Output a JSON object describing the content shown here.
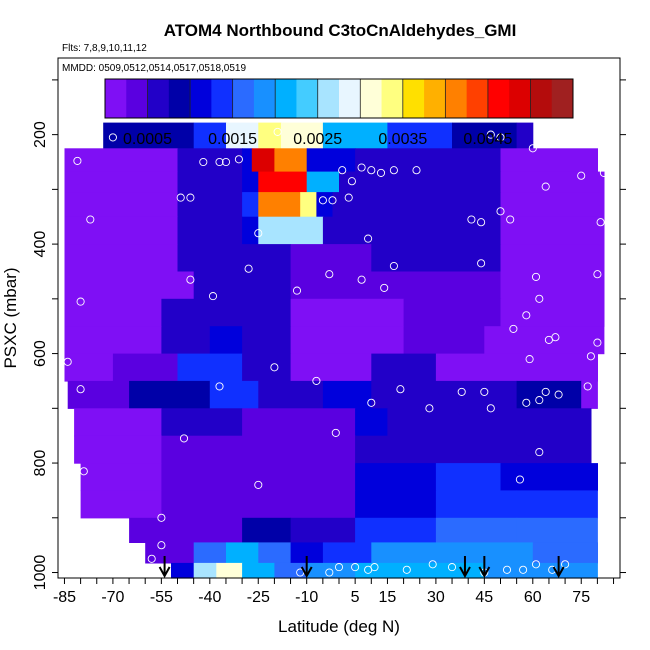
{
  "chart_data": {
    "type": "heatmap",
    "title": "ATOM4 Northbound C3toCnAldehydes_GMI",
    "subtitle_flights": "Flts: 7,8,9,10,11,12",
    "subtitle_dates": "MMDD: 0509,0512,0514,0517,0518,0519",
    "xlabel": "Latitude (deg N)",
    "ylabel": "PSXC (mbar)",
    "xlim": [
      -87,
      87
    ],
    "ylim": [
      1010,
      60
    ],
    "x_ticks": [
      -85,
      -70,
      -55,
      -40,
      -25,
      -10,
      5,
      15,
      30,
      45,
      60,
      75
    ],
    "x_tick_labels": [
      "-85",
      "-70",
      "-55",
      "-40",
      "-25",
      "-10",
      "5",
      "15",
      "30",
      "45",
      "60",
      "75"
    ],
    "y_ticks": [
      200,
      400,
      600,
      800,
      1000
    ],
    "y_tick_labels": [
      "200",
      "400",
      "600",
      "800",
      "1000"
    ],
    "colorbar": {
      "min": 0.0,
      "max": 0.0055,
      "tick_values": [
        0.0005,
        0.0015,
        0.0025,
        0.0035,
        0.0045
      ],
      "tick_labels": [
        "0.0005",
        "0.0015",
        "0.0025",
        "0.0035",
        "0.0045"
      ],
      "colors": [
        "#7f0ff5",
        "#5a00e0",
        "#2200c8",
        "#0000a8",
        "#0000dc",
        "#1030ff",
        "#2b6bff",
        "#1890ff",
        "#00b0ff",
        "#44ccff",
        "#a8e4ff",
        "#e8f6ff",
        "#ffffd8",
        "#ffff80",
        "#ffe000",
        "#ffb000",
        "#ff8000",
        "#ff4000",
        "#ff0000",
        "#dc0000",
        "#b40c0c",
        "#a02020"
      ]
    },
    "bands": [
      {
        "p": 200,
        "segments": [
          {
            "x0": -73,
            "x1": -45,
            "v": 0.0008
          },
          {
            "x0": -45,
            "x1": -35,
            "v": 0.0014
          },
          {
            "x0": -35,
            "x1": -25,
            "v": 0.0028
          },
          {
            "x0": -25,
            "x1": -18,
            "v": 0.0033
          },
          {
            "x0": -18,
            "x1": -5,
            "v": 0.003
          },
          {
            "x0": -5,
            "x1": 15,
            "v": 0.002
          },
          {
            "x0": 15,
            "x1": 35,
            "v": 0.0014
          },
          {
            "x0": 35,
            "x1": 55,
            "v": 0.0009
          },
          {
            "x0": 55,
            "x1": 60,
            "v": 0.0006
          }
        ]
      },
      {
        "p": 250,
        "segments": [
          {
            "x0": -85,
            "x1": -50,
            "v": 0.0002
          },
          {
            "x0": -50,
            "x1": -30,
            "v": 0.0006
          },
          {
            "x0": -30,
            "x1": -27,
            "v": 0.0012
          },
          {
            "x0": -27,
            "x1": -20,
            "v": 0.0048
          },
          {
            "x0": -20,
            "x1": -10,
            "v": 0.004
          },
          {
            "x0": -10,
            "x1": 5,
            "v": 0.001
          },
          {
            "x0": 5,
            "x1": 50,
            "v": 0.0006
          },
          {
            "x0": 50,
            "x1": 80,
            "v": 0.0002
          }
        ]
      },
      {
        "p": 285,
        "segments": [
          {
            "x0": -85,
            "x1": -50,
            "v": 0.0002
          },
          {
            "x0": -50,
            "x1": -30,
            "v": 0.0006
          },
          {
            "x0": -30,
            "x1": -25,
            "v": 0.0012
          },
          {
            "x0": -25,
            "x1": -10,
            "v": 0.0047
          },
          {
            "x0": -10,
            "x1": 0,
            "v": 0.0022
          },
          {
            "x0": 0,
            "x1": 50,
            "v": 0.0006
          },
          {
            "x0": 50,
            "x1": 82,
            "v": 0.0002
          }
        ]
      },
      {
        "p": 325,
        "segments": [
          {
            "x0": -85,
            "x1": -50,
            "v": 0.0002
          },
          {
            "x0": -50,
            "x1": -30,
            "v": 0.0006
          },
          {
            "x0": -30,
            "x1": -25,
            "v": 0.0014
          },
          {
            "x0": -25,
            "x1": -12,
            "v": 0.0041
          },
          {
            "x0": -12,
            "x1": -7,
            "v": 0.0034
          },
          {
            "x0": -7,
            "x1": -2,
            "v": 0.001
          },
          {
            "x0": -2,
            "x1": 50,
            "v": 0.0006
          },
          {
            "x0": 50,
            "x1": 82,
            "v": 0.0002
          }
        ]
      },
      {
        "p": 375,
        "segments": [
          {
            "x0": -85,
            "x1": -50,
            "v": 0.0002
          },
          {
            "x0": -50,
            "x1": -30,
            "v": 0.0006
          },
          {
            "x0": -30,
            "x1": -25,
            "v": 0.0012
          },
          {
            "x0": -25,
            "x1": -5,
            "v": 0.0027
          },
          {
            "x0": -5,
            "x1": 50,
            "v": 0.0005
          },
          {
            "x0": 50,
            "x1": 82,
            "v": 0.0002
          }
        ]
      },
      {
        "p": 425,
        "segments": [
          {
            "x0": -85,
            "x1": -50,
            "v": 0.0002
          },
          {
            "x0": -50,
            "x1": -15,
            "v": 0.0006
          },
          {
            "x0": -15,
            "x1": 10,
            "v": 0.0004
          },
          {
            "x0": 10,
            "x1": 50,
            "v": 0.0005
          },
          {
            "x0": 50,
            "x1": 82,
            "v": 0.0002
          }
        ]
      },
      {
        "p": 475,
        "segments": [
          {
            "x0": -85,
            "x1": -45,
            "v": 0.0002
          },
          {
            "x0": -45,
            "x1": -15,
            "v": 0.0007
          },
          {
            "x0": -15,
            "x1": 20,
            "v": 0.0003
          },
          {
            "x0": 20,
            "x1": 50,
            "v": 0.0004
          },
          {
            "x0": 50,
            "x1": 82,
            "v": 0.0002
          }
        ]
      },
      {
        "p": 525,
        "segments": [
          {
            "x0": -85,
            "x1": -55,
            "v": 0.0002
          },
          {
            "x0": -55,
            "x1": -15,
            "v": 0.0006
          },
          {
            "x0": -15,
            "x1": 20,
            "v": 0.0002
          },
          {
            "x0": 20,
            "x1": 50,
            "v": 0.0003
          },
          {
            "x0": 50,
            "x1": 82,
            "v": 0.0002
          }
        ]
      },
      {
        "p": 575,
        "segments": [
          {
            "x0": -85,
            "x1": -55,
            "v": 0.0002
          },
          {
            "x0": -55,
            "x1": -40,
            "v": 0.0005
          },
          {
            "x0": -40,
            "x1": -30,
            "v": 0.001
          },
          {
            "x0": -30,
            "x1": -15,
            "v": 0.0007
          },
          {
            "x0": -15,
            "x1": 20,
            "v": 0.0002
          },
          {
            "x0": 20,
            "x1": 45,
            "v": 0.0004
          },
          {
            "x0": 45,
            "x1": 82,
            "v": 0.0002
          }
        ]
      },
      {
        "p": 625,
        "segments": [
          {
            "x0": -85,
            "x1": -70,
            "v": 0.0002
          },
          {
            "x0": -70,
            "x1": -50,
            "v": 0.0003
          },
          {
            "x0": -50,
            "x1": -30,
            "v": 0.0014
          },
          {
            "x0": -30,
            "x1": -15,
            "v": 0.0006
          },
          {
            "x0": -15,
            "x1": 10,
            "v": 0.0002
          },
          {
            "x0": 10,
            "x1": 30,
            "v": 0.0005
          },
          {
            "x0": 30,
            "x1": 80,
            "v": 0.0002
          }
        ]
      },
      {
        "p": 675,
        "segments": [
          {
            "x0": -84,
            "x1": -65,
            "v": 0.0003
          },
          {
            "x0": -65,
            "x1": -40,
            "v": 0.0008
          },
          {
            "x0": -40,
            "x1": -25,
            "v": 0.0013
          },
          {
            "x0": -25,
            "x1": -5,
            "v": 0.0006
          },
          {
            "x0": -5,
            "x1": 10,
            "v": 0.0012
          },
          {
            "x0": 10,
            "x1": 20,
            "v": 0.0006
          },
          {
            "x0": 20,
            "x1": 55,
            "v": 0.0005
          },
          {
            "x0": 55,
            "x1": 75,
            "v": 0.0008
          },
          {
            "x0": 75,
            "x1": 80,
            "v": 0.0002
          }
        ]
      },
      {
        "p": 725,
        "segments": [
          {
            "x0": -82,
            "x1": -55,
            "v": 0.0002
          },
          {
            "x0": -55,
            "x1": -30,
            "v": 0.0006
          },
          {
            "x0": -30,
            "x1": 5,
            "v": 0.0004
          },
          {
            "x0": 5,
            "x1": 15,
            "v": 0.0012
          },
          {
            "x0": 15,
            "x1": 55,
            "v": 0.0006
          },
          {
            "x0": 55,
            "x1": 78,
            "v": 0.0005
          }
        ]
      },
      {
        "p": 775,
        "segments": [
          {
            "x0": -82,
            "x1": -55,
            "v": 0.0002
          },
          {
            "x0": -55,
            "x1": 5,
            "v": 0.0004
          },
          {
            "x0": 5,
            "x1": 40,
            "v": 0.0006
          },
          {
            "x0": 40,
            "x1": 78,
            "v": 0.0006
          }
        ]
      },
      {
        "p": 825,
        "segments": [
          {
            "x0": -80,
            "x1": -55,
            "v": 0.0002
          },
          {
            "x0": -55,
            "x1": 5,
            "v": 0.0003
          },
          {
            "x0": 5,
            "x1": 30,
            "v": 0.001
          },
          {
            "x0": 30,
            "x1": 50,
            "v": 0.0014
          },
          {
            "x0": 50,
            "x1": 80,
            "v": 0.0012
          }
        ]
      },
      {
        "p": 875,
        "segments": [
          {
            "x0": -80,
            "x1": -55,
            "v": 0.0002
          },
          {
            "x0": -55,
            "x1": 5,
            "v": 0.0003
          },
          {
            "x0": 5,
            "x1": 30,
            "v": 0.0011
          },
          {
            "x0": 30,
            "x1": 55,
            "v": 0.0014
          },
          {
            "x0": 55,
            "x1": 80,
            "v": 0.0013
          }
        ]
      },
      {
        "p": 925,
        "segments": [
          {
            "x0": -65,
            "x1": -30,
            "v": 0.0003
          },
          {
            "x0": -30,
            "x1": -15,
            "v": 0.0008
          },
          {
            "x0": -15,
            "x1": 5,
            "v": 0.0006
          },
          {
            "x0": 5,
            "x1": 30,
            "v": 0.0013
          },
          {
            "x0": 30,
            "x1": 55,
            "v": 0.0016
          },
          {
            "x0": 55,
            "x1": 80,
            "v": 0.0015
          }
        ]
      },
      {
        "p": 965,
        "segments": [
          {
            "x0": -60,
            "x1": -45,
            "v": 0.0004
          },
          {
            "x0": -45,
            "x1": -35,
            "v": 0.0016
          },
          {
            "x0": -35,
            "x1": -25,
            "v": 0.002
          },
          {
            "x0": -25,
            "x1": -15,
            "v": 0.0017
          },
          {
            "x0": -15,
            "x1": -5,
            "v": 0.0012
          },
          {
            "x0": -5,
            "x1": 10,
            "v": 0.0014
          },
          {
            "x0": 10,
            "x1": 35,
            "v": 0.0018
          },
          {
            "x0": 35,
            "x1": 60,
            "v": 0.0019
          },
          {
            "x0": 60,
            "x1": 80,
            "v": 0.0017
          }
        ]
      },
      {
        "p": 1000,
        "segments": [
          {
            "x0": -52,
            "x1": -45,
            "v": 0.0012
          },
          {
            "x0": -45,
            "x1": -38,
            "v": 0.0026
          },
          {
            "x0": -38,
            "x1": -30,
            "v": 0.0031
          },
          {
            "x0": -30,
            "x1": -20,
            "v": 0.0022
          },
          {
            "x0": -20,
            "x1": -10,
            "v": 0.0016
          },
          {
            "x0": -10,
            "x1": 5,
            "v": 0.0019
          },
          {
            "x0": 5,
            "x1": 45,
            "v": 0.0021
          },
          {
            "x0": 45,
            "x1": 80,
            "v": 0.0019
          }
        ]
      }
    ],
    "observations": [
      {
        "lat": -85,
        "p": 210
      },
      {
        "lat": -81,
        "p": 248
      },
      {
        "lat": -70,
        "p": 205
      },
      {
        "lat": -77,
        "p": 355
      },
      {
        "lat": -80,
        "p": 505
      },
      {
        "lat": -84,
        "p": 615
      },
      {
        "lat": -80,
        "p": 665
      },
      {
        "lat": -79,
        "p": 815
      },
      {
        "lat": -55,
        "p": 900
      },
      {
        "lat": -55,
        "p": 950
      },
      {
        "lat": -49,
        "p": 315
      },
      {
        "lat": -46,
        "p": 315
      },
      {
        "lat": -42,
        "p": 250
      },
      {
        "lat": -37,
        "p": 250
      },
      {
        "lat": -46,
        "p": 465
      },
      {
        "lat": -48,
        "p": 755
      },
      {
        "lat": -39,
        "p": 495
      },
      {
        "lat": -37,
        "p": 660
      },
      {
        "lat": -35,
        "p": 250
      },
      {
        "lat": -31,
        "p": 245
      },
      {
        "lat": -28,
        "p": 445
      },
      {
        "lat": -25,
        "p": 380
      },
      {
        "lat": -25,
        "p": 840
      },
      {
        "lat": -20,
        "p": 625
      },
      {
        "lat": -19,
        "p": 195
      },
      {
        "lat": -13,
        "p": 485
      },
      {
        "lat": -7,
        "p": 650
      },
      {
        "lat": -5,
        "p": 320
      },
      {
        "lat": -2,
        "p": 320
      },
      {
        "lat": -3,
        "p": 455
      },
      {
        "lat": -1,
        "p": 745
      },
      {
        "lat": 1,
        "p": 265
      },
      {
        "lat": 3,
        "p": 315
      },
      {
        "lat": 4,
        "p": 285
      },
      {
        "lat": 7,
        "p": 260
      },
      {
        "lat": 10,
        "p": 690
      },
      {
        "lat": 9,
        "p": 995
      },
      {
        "lat": 5,
        "p": 990
      },
      {
        "lat": 0,
        "p": 990
      },
      {
        "lat": -12,
        "p": 1000
      },
      {
        "lat": -3,
        "p": 1000
      },
      {
        "lat": 7,
        "p": 465
      },
      {
        "lat": 10,
        "p": 265
      },
      {
        "lat": 14,
        "p": 480
      },
      {
        "lat": 17,
        "p": 265
      },
      {
        "lat": 17,
        "p": 440
      },
      {
        "lat": 19,
        "p": 665
      },
      {
        "lat": 21,
        "p": 995
      },
      {
        "lat": 24,
        "p": 265
      },
      {
        "lat": 28,
        "p": 700
      },
      {
        "lat": 38,
        "p": 670
      },
      {
        "lat": 41,
        "p": 355
      },
      {
        "lat": 44,
        "p": 360
      },
      {
        "lat": 44,
        "p": 435
      },
      {
        "lat": 47,
        "p": 200
      },
      {
        "lat": 50,
        "p": 205
      },
      {
        "lat": 50,
        "p": 340
      },
      {
        "lat": 53,
        "p": 355
      },
      {
        "lat": 54,
        "p": 555
      },
      {
        "lat": 56,
        "p": 830
      },
      {
        "lat": 57,
        "p": 995
      },
      {
        "lat": 58,
        "p": 530
      },
      {
        "lat": 60,
        "p": 225
      },
      {
        "lat": 61,
        "p": 460
      },
      {
        "lat": 62,
        "p": 500
      },
      {
        "lat": 62,
        "p": 685
      },
      {
        "lat": 64,
        "p": 295
      },
      {
        "lat": 64,
        "p": 670
      },
      {
        "lat": 65,
        "p": 575
      },
      {
        "lat": 66,
        "p": 210
      },
      {
        "lat": 68,
        "p": 675
      },
      {
        "lat": 70,
        "p": 985
      },
      {
        "lat": 72,
        "p": 205
      },
      {
        "lat": 75,
        "p": 275
      },
      {
        "lat": 78,
        "p": 605
      },
      {
        "lat": 80,
        "p": 455
      },
      {
        "lat": 80,
        "p": 580
      },
      {
        "lat": 81,
        "p": 360
      },
      {
        "lat": 82,
        "p": 270
      },
      {
        "lat": 83,
        "p": 985
      },
      {
        "lat": 86,
        "p": 275
      },
      {
        "lat": 84,
        "p": 575
      },
      {
        "lat": 59,
        "p": 610
      },
      {
        "lat": 52,
        "p": 995
      },
      {
        "lat": 45,
        "p": 1000
      },
      {
        "lat": 61,
        "p": 985
      },
      {
        "lat": 66,
        "p": 995
      },
      {
        "lat": 29,
        "p": 985
      },
      {
        "lat": 35,
        "p": 990
      },
      {
        "lat": 11,
        "p": 990
      },
      {
        "lat": 13,
        "p": 270
      },
      {
        "lat": 9,
        "p": 390
      },
      {
        "lat": 47,
        "p": 700
      },
      {
        "lat": 45,
        "p": 670
      },
      {
        "lat": 67,
        "p": 570
      },
      {
        "lat": 62,
        "p": 780
      },
      {
        "lat": 58,
        "p": 690
      },
      {
        "lat": 77,
        "p": 660
      },
      {
        "lat": -58,
        "p": 975
      },
      {
        "lat": -54,
        "p": 1000
      }
    ],
    "arrows": [
      {
        "lat": -54
      },
      {
        "lat": -10
      },
      {
        "lat": 39
      },
      {
        "lat": 45
      },
      {
        "lat": 68
      }
    ]
  }
}
